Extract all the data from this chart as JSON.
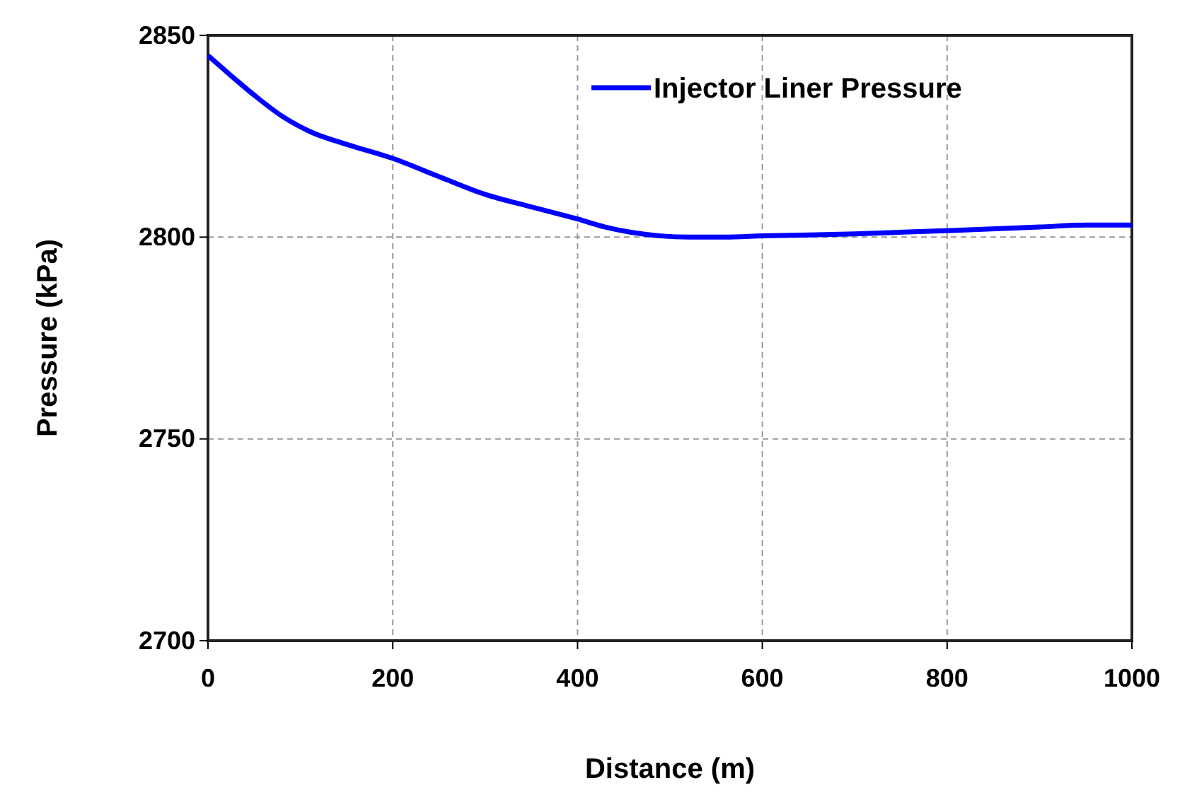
{
  "chart_data": {
    "type": "line",
    "xlabel": "Distance (m)",
    "ylabel": "Pressure (kPa)",
    "xlim": [
      0,
      1000
    ],
    "xticks": [
      0,
      200,
      400,
      600,
      800,
      1000
    ],
    "ylim": [
      2700,
      2850
    ],
    "yticks": [
      2700,
      2750,
      2800,
      2850
    ],
    "grid": true,
    "legend": "top right",
    "series": [
      {
        "name": "Injector Liner Pressure",
        "color": "#0000ff",
        "x": [
          0,
          25,
          51,
          80,
          112,
          150,
          200,
          250,
          300,
          350,
          400,
          430,
          458,
          490,
          520,
          560,
          600,
          700,
          800,
          900,
          950,
          1000
        ],
        "values": [
          2845,
          2840,
          2835,
          2830,
          2826,
          2823,
          2819.5,
          2815,
          2810.6,
          2807.5,
          2804.5,
          2802.5,
          2801.2,
          2800.3,
          2800,
          2800,
          2800.3,
          2800.8,
          2801.6,
          2802.5,
          2803,
          2803
        ]
      }
    ]
  }
}
